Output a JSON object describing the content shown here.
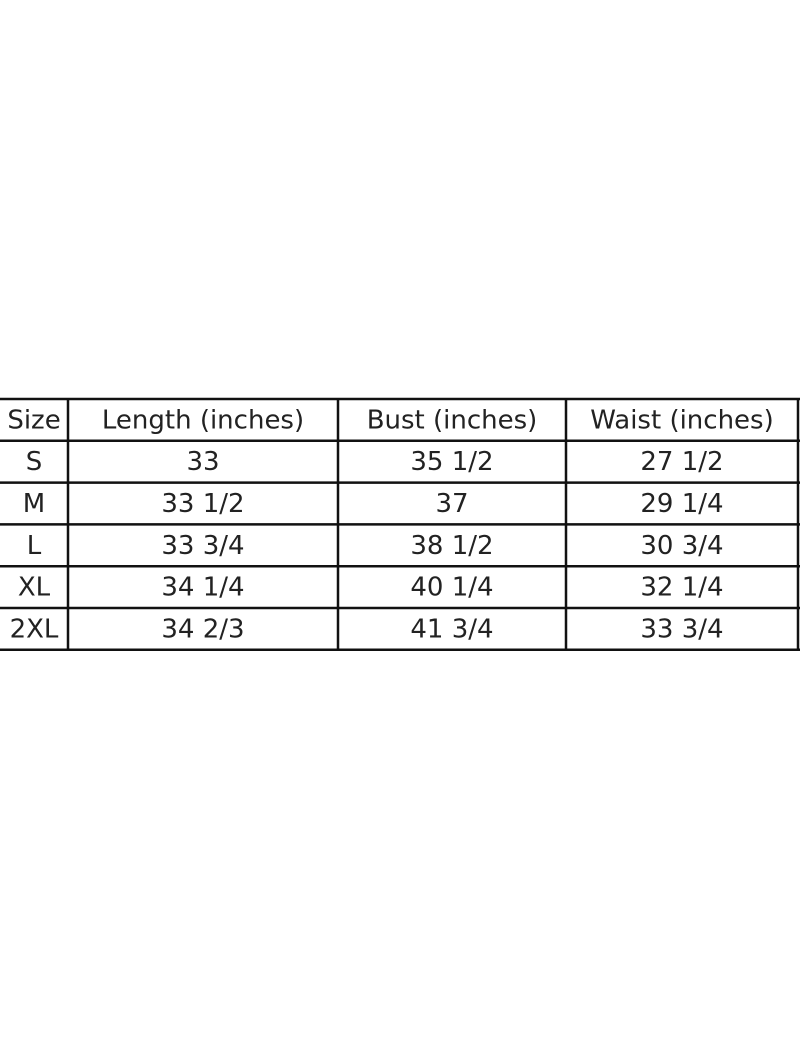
{
  "table": {
    "header": [
      "Size",
      "Length (inches)",
      "Bust (inches)",
      "Waist (inches)"
    ],
    "rows": [
      [
        "S",
        "33",
        "35 1/2",
        "27 1/2"
      ],
      [
        "M",
        "33 1/2",
        "37",
        "29 1/4"
      ],
      [
        "L",
        "33 3/4",
        "38 1/2",
        "30 3/4"
      ],
      [
        "XL",
        "34 1/4",
        "40 1/4",
        "32 1/4"
      ],
      [
        "2XL",
        "34 2/3",
        "41 3/4",
        "33 3/4"
      ]
    ]
  }
}
